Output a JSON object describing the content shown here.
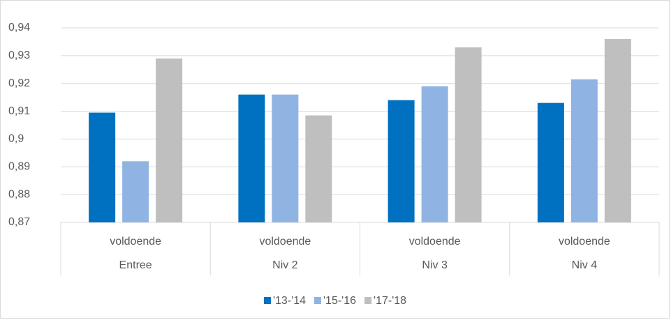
{
  "chart_data": {
    "type": "bar",
    "categories": [
      "voldoende",
      "voldoende",
      "voldoende",
      "voldoende"
    ],
    "category_groups": [
      "Entree",
      "Niv 2",
      "Niv 3",
      "Niv 4"
    ],
    "series": [
      {
        "name": "'13-'14",
        "color": "#0070c0",
        "values": [
          0.9095,
          0.916,
          0.914,
          0.913
        ]
      },
      {
        "name": "'15-'16",
        "color": "#8fb4e3",
        "values": [
          0.892,
          0.916,
          0.919,
          0.9215
        ]
      },
      {
        "name": "'17-'18",
        "color": "#bfbfbf",
        "values": [
          0.929,
          0.9085,
          0.933,
          0.936
        ]
      }
    ],
    "ylim": [
      0.87,
      0.94
    ],
    "yticks": [
      {
        "value": 0.87,
        "label": "0,87"
      },
      {
        "value": 0.88,
        "label": "0,88"
      },
      {
        "value": 0.89,
        "label": "0,89"
      },
      {
        "value": 0.9,
        "label": "0,9"
      },
      {
        "value": 0.91,
        "label": "0,91"
      },
      {
        "value": 0.92,
        "label": "0,92"
      },
      {
        "value": 0.93,
        "label": "0,93"
      },
      {
        "value": 0.94,
        "label": "0,94"
      }
    ],
    "grid": true,
    "legend": "bottom"
  }
}
